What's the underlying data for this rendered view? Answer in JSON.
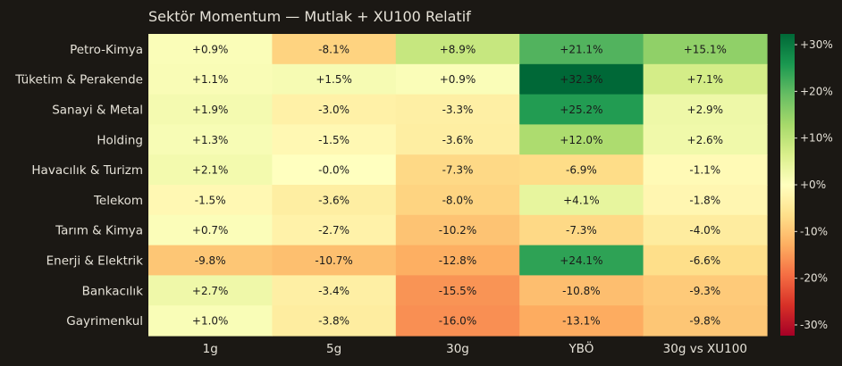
{
  "chart_data": {
    "type": "heatmap",
    "title": "Sektör Momentum — Mutlak + XU100 Relatif",
    "columns": [
      "1g",
      "5g",
      "30g",
      "YBÖ",
      "30g vs XU100"
    ],
    "rows": [
      {
        "label": "Petro-Kimya",
        "values": [
          0.9,
          -8.1,
          8.9,
          21.1,
          15.1
        ],
        "texts": [
          "+0.9%",
          "-8.1%",
          "+8.9%",
          "+21.1%",
          "+15.1%"
        ]
      },
      {
        "label": "Tüketim & Perakende",
        "values": [
          1.1,
          1.5,
          0.9,
          32.3,
          7.1
        ],
        "texts": [
          "+1.1%",
          "+1.5%",
          "+0.9%",
          "+32.3%",
          "+7.1%"
        ]
      },
      {
        "label": "Sanayi & Metal",
        "values": [
          1.9,
          -3.0,
          -3.3,
          25.2,
          2.9
        ],
        "texts": [
          "+1.9%",
          "-3.0%",
          "-3.3%",
          "+25.2%",
          "+2.9%"
        ]
      },
      {
        "label": "Holding",
        "values": [
          1.3,
          -1.5,
          -3.6,
          12.0,
          2.6
        ],
        "texts": [
          "+1.3%",
          "-1.5%",
          "-3.6%",
          "+12.0%",
          "+2.6%"
        ]
      },
      {
        "label": "Havacılık & Turizm",
        "values": [
          2.1,
          -0.0,
          -7.3,
          -6.9,
          -1.1
        ],
        "texts": [
          "+2.1%",
          "-0.0%",
          "-7.3%",
          "-6.9%",
          "-1.1%"
        ]
      },
      {
        "label": "Telekom",
        "values": [
          -1.5,
          -3.6,
          -8.0,
          4.1,
          -1.8
        ],
        "texts": [
          "-1.5%",
          "-3.6%",
          "-8.0%",
          "+4.1%",
          "-1.8%"
        ]
      },
      {
        "label": "Tarım & Kimya",
        "values": [
          0.7,
          -2.7,
          -10.2,
          -7.3,
          -4.0
        ],
        "texts": [
          "+0.7%",
          "-2.7%",
          "-10.2%",
          "-7.3%",
          "-4.0%"
        ]
      },
      {
        "label": "Enerji & Elektrik",
        "values": [
          -9.8,
          -10.7,
          -12.8,
          24.1,
          -6.6
        ],
        "texts": [
          "-9.8%",
          "-10.7%",
          "-12.8%",
          "+24.1%",
          "-6.6%"
        ]
      },
      {
        "label": "Bankacılık",
        "values": [
          2.7,
          -3.4,
          -15.5,
          -10.8,
          -9.3
        ],
        "texts": [
          "+2.7%",
          "-3.4%",
          "-15.5%",
          "-10.8%",
          "-9.3%"
        ]
      },
      {
        "label": "Gayrimenkul",
        "values": [
          1.0,
          -3.8,
          -16.0,
          -13.1,
          -9.8
        ],
        "texts": [
          "+1.0%",
          "-3.8%",
          "-16.0%",
          "-13.1%",
          "-9.8%"
        ]
      }
    ],
    "colorscale": "RdYlGn",
    "zlim": [
      -32.3,
      32.3
    ],
    "colorbar": {
      "ticks": [
        30,
        20,
        10,
        0,
        -10,
        -20,
        -30
      ],
      "tick_labels": [
        "+30%",
        "+20%",
        "+10%",
        "+0%",
        "-10%",
        "-20%",
        "-30%"
      ]
    },
    "colors": {
      "background": "#1b1814",
      "title_text": "#e6e2d8",
      "axis_text": "#e6e2d8",
      "cell_text": "#1a1a1a"
    }
  }
}
